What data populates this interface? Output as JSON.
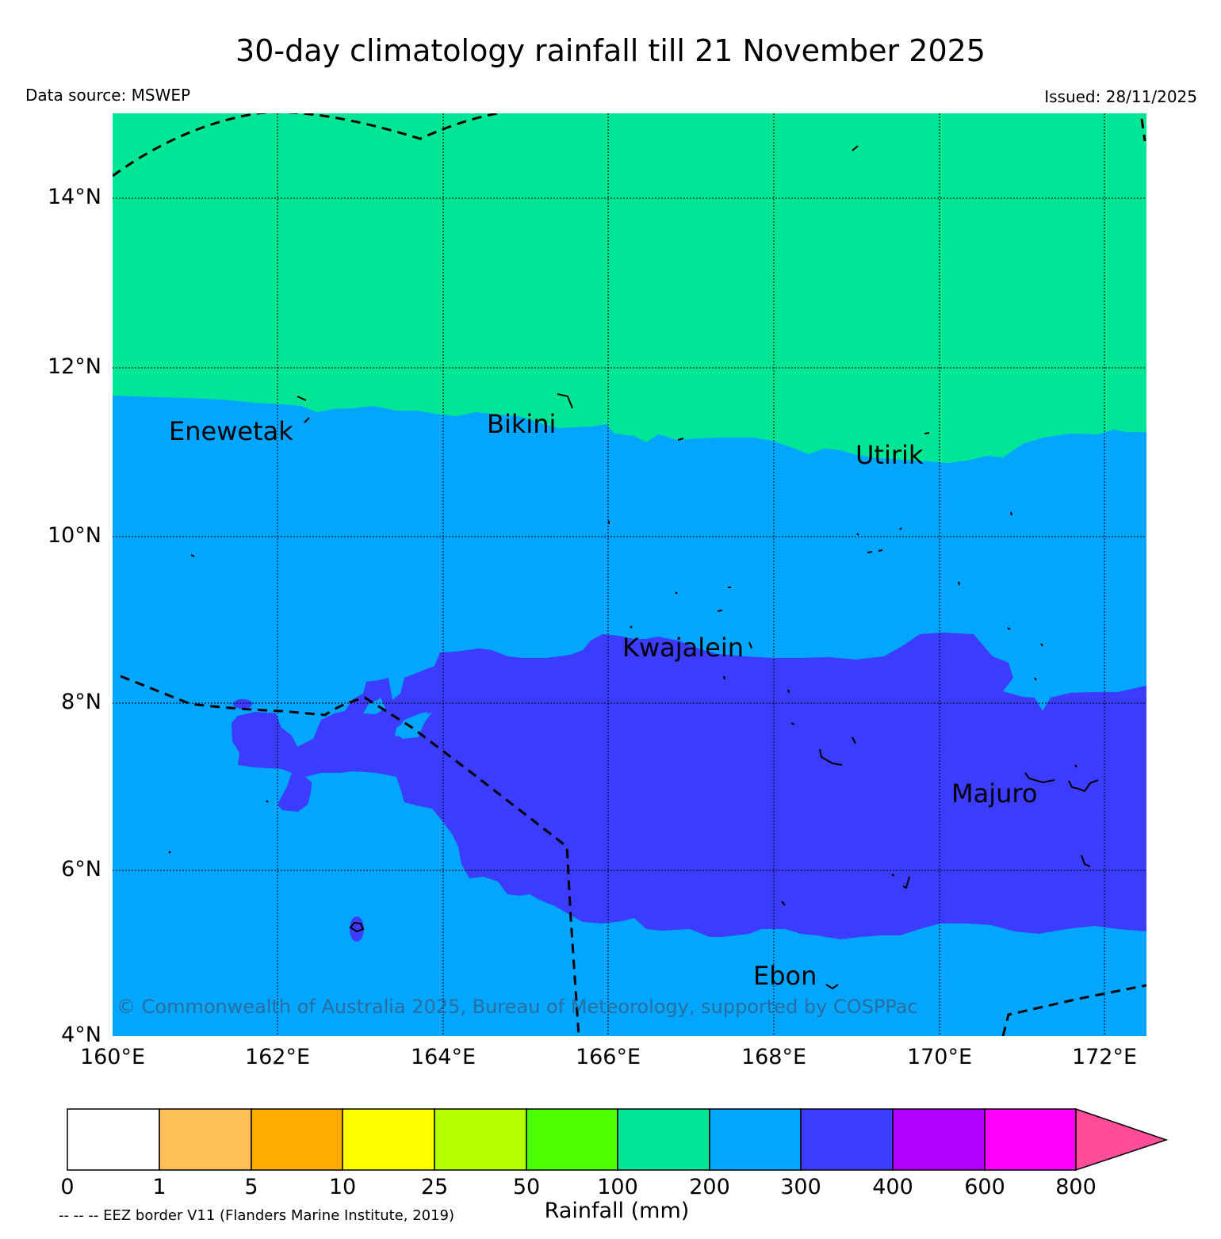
{
  "title": "30-day climatology rainfall till 21 November 2025",
  "data_source": "Data source: MSWEP",
  "issued": "Issued: 28/11/2025",
  "copyright": "© Commonwealth of Australia 2025, Bureau of Meteorology, supported by COSPPac",
  "eez_note": "-- -- -- EEZ border V11 (Flanders Marine Institute, 2019)",
  "map": {
    "lat_labels": [
      "14°N",
      "12°N",
      "10°N",
      "8°N",
      "6°N",
      "4°N"
    ],
    "lon_labels": [
      "160°E",
      "162°E",
      "164°E",
      "166°E",
      "168°E",
      "170°E",
      "172°E"
    ],
    "places": [
      "Enewetak",
      "Bikini",
      "Utirik",
      "Kwajalein",
      "Majuro",
      "Ebon"
    ]
  },
  "colorbar": {
    "title": "Rainfall (mm)",
    "ticks": [
      "0",
      "1",
      "5",
      "10",
      "25",
      "50",
      "100",
      "200",
      "300",
      "400",
      "600",
      "800"
    ],
    "colors": [
      "#ffffff",
      "#ffbf58",
      "#ffab00",
      "#ffff00",
      "#b4ff00",
      "#4cff00",
      "#00e696",
      "#00a6ff",
      "#3c3cff",
      "#b400ff",
      "#ff00ff",
      "#ff4c9a"
    ]
  },
  "legend_colors": {
    "band_100_200": "#00e696",
    "band_200_300": "#00a6ff",
    "band_300_400": "#3c3cff"
  }
}
